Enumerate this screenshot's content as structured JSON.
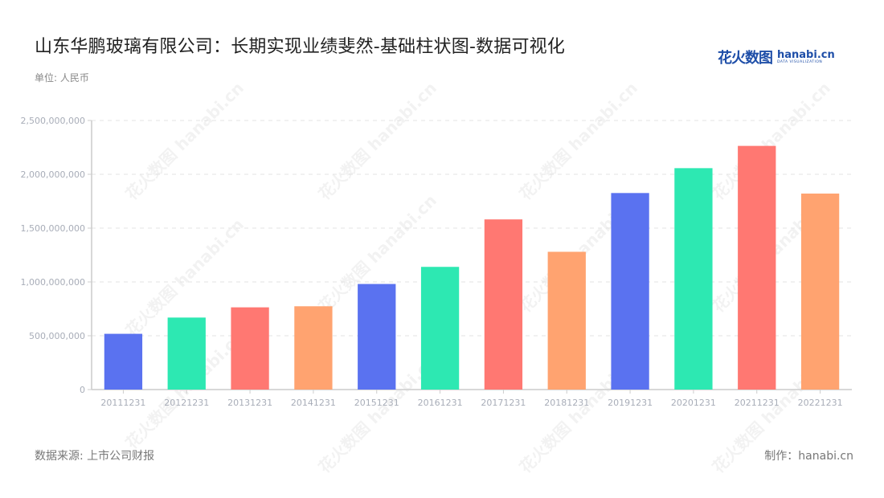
{
  "header": {
    "title": "山东华鹏玻璃有限公司：长期实现业绩斐然-基础柱状图-数据可视化",
    "unit": "单位: 人民币"
  },
  "logo": {
    "cn": "花火数图",
    "en": "hanabi.cn",
    "sub": "DATA VISUALIZATION"
  },
  "footer": {
    "source": "数据来源: 上市公司财报",
    "credit": "制作：hanabi.cn"
  },
  "watermark": "花火数图 hanabi.cn",
  "colors": {
    "palette": [
      "#5a72f0",
      "#2de8b2",
      "#ff7872",
      "#ffa370"
    ],
    "grid": "#e3e3e3",
    "axis": "#cccccc",
    "tick_label": "#a8adb8"
  },
  "chart_data": {
    "type": "bar",
    "title": "山东华鹏玻璃有限公司：长期实现业绩斐然-基础柱状图-数据可视化",
    "subtitle": "单位: 人民币",
    "xlabel": "",
    "ylabel": "",
    "categories": [
      "20111231",
      "20121231",
      "20131231",
      "20141231",
      "20151231",
      "20161231",
      "20171231",
      "20181231",
      "20191231",
      "20201231",
      "20211231",
      "20221231"
    ],
    "values": [
      518000000,
      669000000,
      764000000,
      774000000,
      981000000,
      1140000000,
      1581000000,
      1280000000,
      1826000000,
      2057000000,
      2264000000,
      1821000000
    ],
    "ylim": [
      0,
      2500000000
    ],
    "yticks": [
      0,
      500000000,
      1000000000,
      1500000000,
      2000000000,
      2500000000
    ],
    "ytick_labels": [
      "0",
      "500,000,000",
      "1,000,000,000",
      "1,500,000,000",
      "2,000,000,000",
      "2,500,000,000"
    ],
    "grid": true,
    "legend": "none",
    "bar_colors_cycle": [
      "#5a72f0",
      "#2de8b2",
      "#ff7872",
      "#ffa370"
    ]
  }
}
